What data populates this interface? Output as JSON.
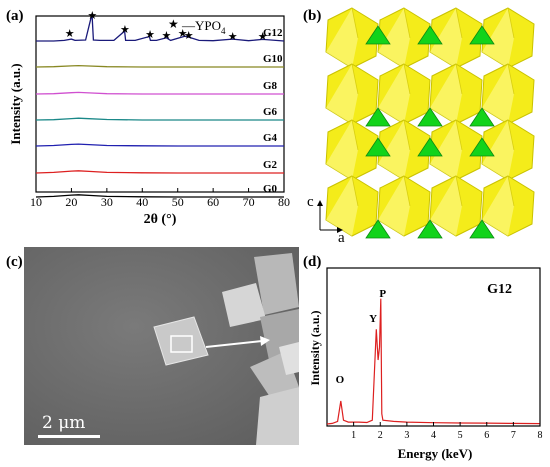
{
  "panels": {
    "a": "(a)",
    "b": "(b)",
    "c": "(c)",
    "d": "(d)"
  },
  "chart_data": [
    {
      "type": "line",
      "panel": "(a)",
      "xlabel": "2θ (°)",
      "ylabel": "Intensity (a.u.)",
      "xlim": [
        10,
        80
      ],
      "xticks": [
        10,
        20,
        30,
        40,
        50,
        60,
        70,
        80
      ],
      "legend_marker": "★",
      "legend_label": "YPO",
      "legend_subscript": "4",
      "series": [
        {
          "name": "G12",
          "color": "#1a1a7a",
          "x": [
            10,
            15,
            18,
            20,
            21,
            24,
            25.8,
            26.2,
            28,
            32,
            35,
            35.3,
            38,
            42,
            42.3,
            44,
            46.8,
            48,
            51.5,
            52,
            53.2,
            56,
            60,
            65.5,
            70,
            74,
            80
          ],
          "y": [
            0,
            0,
            0.2,
            0.6,
            0.2,
            0.3,
            8.5,
            0.3,
            0.2,
            0.2,
            3.1,
            0.2,
            0.2,
            1.4,
            0.2,
            0.2,
            1,
            0.2,
            1.3,
            1.5,
            1.2,
            0.2,
            0.1,
            0.6,
            0.1,
            0.5,
            0
          ]
        },
        {
          "name": "G10",
          "color": "#888822",
          "x": [
            10,
            15,
            20,
            22,
            25,
            30,
            40,
            50,
            60,
            70,
            80
          ],
          "y": [
            0,
            0.1,
            0.35,
            0.45,
            0.3,
            0.1,
            0,
            0,
            0,
            0,
            0
          ]
        },
        {
          "name": "G8",
          "color": "#d050d0",
          "x": [
            10,
            15,
            20,
            22,
            25,
            30,
            40,
            50,
            60,
            70,
            80
          ],
          "y": [
            0,
            0.1,
            0.4,
            0.5,
            0.35,
            0.1,
            0,
            0,
            0,
            0,
            0
          ]
        },
        {
          "name": "G6",
          "color": "#1a8888",
          "x": [
            10,
            15,
            20,
            22,
            25,
            30,
            40,
            50,
            60,
            70,
            80
          ],
          "y": [
            0,
            0.1,
            0.45,
            0.55,
            0.4,
            0.15,
            0,
            0,
            0,
            0,
            0
          ]
        },
        {
          "name": "G4",
          "color": "#2020b0",
          "x": [
            10,
            15,
            20,
            22,
            25,
            30,
            40,
            50,
            60,
            70,
            80
          ],
          "y": [
            0,
            0.15,
            0.5,
            0.6,
            0.45,
            0.15,
            0.05,
            0,
            0,
            0,
            0
          ]
        },
        {
          "name": "G2",
          "color": "#dd2020",
          "x": [
            10,
            15,
            20,
            22,
            25,
            30,
            40,
            50,
            60,
            70,
            80
          ],
          "y": [
            0,
            0.2,
            0.6,
            0.7,
            0.5,
            0.2,
            0.05,
            0,
            0,
            0,
            0
          ]
        },
        {
          "name": "G0",
          "color": "#000000",
          "x": [
            10,
            15,
            20,
            22,
            25,
            30,
            40,
            50,
            60,
            70,
            80
          ],
          "y": [
            0,
            0.2,
            0.6,
            0.7,
            0.5,
            0.2,
            0.05,
            0,
            0,
            0,
            0
          ]
        }
      ],
      "peak_markers_2theta": [
        19.5,
        25.9,
        35.1,
        42.2,
        46.8,
        51.4,
        53.1,
        65.5,
        74
      ]
    },
    {
      "type": "line",
      "panel": "(d)",
      "title": "G12",
      "xlabel": "Energy (keV)",
      "ylabel": "Intensity (a.u.)",
      "xlim": [
        0,
        8
      ],
      "xticks": [
        1,
        2,
        3,
        4,
        5,
        6,
        7,
        8
      ],
      "series": [
        {
          "color": "#dd2020",
          "x": [
            0,
            0.2,
            0.4,
            0.52,
            0.62,
            0.8,
            1.2,
            1.5,
            1.7,
            1.85,
            1.92,
            1.97,
            2.02,
            2.06,
            2.1,
            2.5,
            3,
            4,
            5,
            6,
            7,
            8
          ],
          "y": [
            0,
            0.5,
            2,
            18,
            3,
            1.5,
            1.5,
            1.2,
            3,
            74,
            50,
            60,
            98,
            8,
            3,
            2,
            1.5,
            1,
            0.8,
            0.7,
            0.5,
            0.3
          ]
        }
      ],
      "annotations": [
        {
          "text": "O",
          "x": 0.52
        },
        {
          "text": "Y",
          "x": 1.92
        },
        {
          "text": "P",
          "x": 2.02
        }
      ]
    }
  ],
  "structure": {
    "axis_c": "c",
    "axis_a": "a"
  },
  "sem": {
    "scale_label": "2 μm"
  }
}
